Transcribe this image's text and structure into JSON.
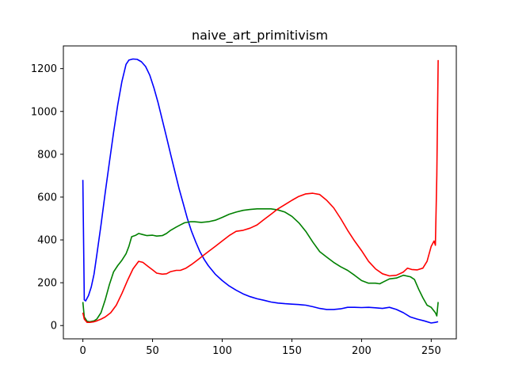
{
  "chart_data": {
    "type": "line",
    "title": "naive_art_primitivism",
    "xlabel": "",
    "ylabel": "",
    "xlim": [
      -14,
      268
    ],
    "ylim": [
      -62,
      1306
    ],
    "xticks": [
      0,
      50,
      100,
      150,
      200,
      250
    ],
    "yticks": [
      0,
      200,
      400,
      600,
      800,
      1000,
      1200
    ],
    "grid": false,
    "legend": "none",
    "series": [
      {
        "color": "#0000ff",
        "points": [
          [
            0,
            680
          ],
          [
            1,
            120
          ],
          [
            2,
            115
          ],
          [
            4,
            140
          ],
          [
            6,
            180
          ],
          [
            8,
            240
          ],
          [
            10,
            330
          ],
          [
            13,
            470
          ],
          [
            16,
            620
          ],
          [
            19,
            760
          ],
          [
            22,
            900
          ],
          [
            25,
            1030
          ],
          [
            28,
            1140
          ],
          [
            31,
            1220
          ],
          [
            33,
            1240
          ],
          [
            36,
            1245
          ],
          [
            39,
            1243
          ],
          [
            42,
            1232
          ],
          [
            45,
            1210
          ],
          [
            48,
            1170
          ],
          [
            51,
            1110
          ],
          [
            54,
            1040
          ],
          [
            57,
            960
          ],
          [
            60,
            880
          ],
          [
            63,
            800
          ],
          [
            66,
            720
          ],
          [
            69,
            640
          ],
          [
            72,
            570
          ],
          [
            75,
            500
          ],
          [
            78,
            440
          ],
          [
            81,
            390
          ],
          [
            84,
            345
          ],
          [
            87,
            310
          ],
          [
            90,
            280
          ],
          [
            95,
            240
          ],
          [
            100,
            210
          ],
          [
            105,
            185
          ],
          [
            110,
            165
          ],
          [
            115,
            148
          ],
          [
            120,
            135
          ],
          [
            125,
            125
          ],
          [
            130,
            118
          ],
          [
            135,
            110
          ],
          [
            140,
            105
          ],
          [
            145,
            102
          ],
          [
            150,
            100
          ],
          [
            155,
            98
          ],
          [
            160,
            95
          ],
          [
            165,
            88
          ],
          [
            170,
            80
          ],
          [
            175,
            75
          ],
          [
            180,
            75
          ],
          [
            185,
            78
          ],
          [
            190,
            85
          ],
          [
            195,
            85
          ],
          [
            200,
            84
          ],
          [
            205,
            85
          ],
          [
            210,
            83
          ],
          [
            215,
            80
          ],
          [
            220,
            85
          ],
          [
            225,
            75
          ],
          [
            230,
            60
          ],
          [
            235,
            40
          ],
          [
            240,
            30
          ],
          [
            245,
            22
          ],
          [
            250,
            12
          ],
          [
            253,
            15
          ],
          [
            255,
            18
          ]
        ]
      },
      {
        "color": "#008000",
        "points": [
          [
            0,
            110
          ],
          [
            1,
            40
          ],
          [
            3,
            20
          ],
          [
            5,
            18
          ],
          [
            8,
            22
          ],
          [
            10,
            30
          ],
          [
            13,
            60
          ],
          [
            16,
            120
          ],
          [
            19,
            190
          ],
          [
            22,
            250
          ],
          [
            25,
            280
          ],
          [
            28,
            305
          ],
          [
            31,
            335
          ],
          [
            33,
            370
          ],
          [
            35,
            415
          ],
          [
            38,
            422
          ],
          [
            40,
            430
          ],
          [
            43,
            425
          ],
          [
            46,
            420
          ],
          [
            50,
            422
          ],
          [
            53,
            418
          ],
          [
            57,
            420
          ],
          [
            60,
            430
          ],
          [
            63,
            445
          ],
          [
            67,
            460
          ],
          [
            70,
            470
          ],
          [
            73,
            480
          ],
          [
            77,
            485
          ],
          [
            80,
            485
          ],
          [
            85,
            482
          ],
          [
            90,
            485
          ],
          [
            95,
            492
          ],
          [
            100,
            505
          ],
          [
            105,
            520
          ],
          [
            110,
            530
          ],
          [
            115,
            538
          ],
          [
            120,
            542
          ],
          [
            125,
            545
          ],
          [
            130,
            545
          ],
          [
            135,
            545
          ],
          [
            140,
            540
          ],
          [
            145,
            530
          ],
          [
            150,
            510
          ],
          [
            155,
            480
          ],
          [
            160,
            440
          ],
          [
            165,
            390
          ],
          [
            170,
            345
          ],
          [
            175,
            320
          ],
          [
            180,
            295
          ],
          [
            185,
            275
          ],
          [
            190,
            258
          ],
          [
            195,
            235
          ],
          [
            200,
            210
          ],
          [
            205,
            198
          ],
          [
            210,
            198
          ],
          [
            213,
            195
          ],
          [
            216,
            205
          ],
          [
            220,
            218
          ],
          [
            225,
            222
          ],
          [
            230,
            235
          ],
          [
            235,
            228
          ],
          [
            238,
            215
          ],
          [
            241,
            170
          ],
          [
            244,
            130
          ],
          [
            247,
            95
          ],
          [
            250,
            85
          ],
          [
            253,
            60
          ],
          [
            254,
            45
          ],
          [
            255,
            110
          ]
        ]
      },
      {
        "color": "#ff0000",
        "points": [
          [
            0,
            60
          ],
          [
            1,
            30
          ],
          [
            3,
            15
          ],
          [
            5,
            15
          ],
          [
            8,
            18
          ],
          [
            10,
            22
          ],
          [
            13,
            30
          ],
          [
            16,
            40
          ],
          [
            20,
            60
          ],
          [
            24,
            95
          ],
          [
            28,
            150
          ],
          [
            32,
            210
          ],
          [
            36,
            265
          ],
          [
            40,
            300
          ],
          [
            43,
            295
          ],
          [
            47,
            275
          ],
          [
            50,
            260
          ],
          [
            53,
            245
          ],
          [
            57,
            240
          ],
          [
            60,
            242
          ],
          [
            63,
            252
          ],
          [
            67,
            258
          ],
          [
            70,
            258
          ],
          [
            74,
            268
          ],
          [
            78,
            285
          ],
          [
            82,
            305
          ],
          [
            86,
            325
          ],
          [
            90,
            345
          ],
          [
            95,
            370
          ],
          [
            100,
            395
          ],
          [
            105,
            420
          ],
          [
            110,
            440
          ],
          [
            115,
            445
          ],
          [
            120,
            455
          ],
          [
            125,
            470
          ],
          [
            130,
            495
          ],
          [
            135,
            520
          ],
          [
            140,
            545
          ],
          [
            145,
            565
          ],
          [
            150,
            585
          ],
          [
            155,
            603
          ],
          [
            160,
            615
          ],
          [
            165,
            618
          ],
          [
            170,
            612
          ],
          [
            175,
            585
          ],
          [
            180,
            550
          ],
          [
            185,
            500
          ],
          [
            190,
            445
          ],
          [
            195,
            395
          ],
          [
            200,
            350
          ],
          [
            205,
            300
          ],
          [
            210,
            265
          ],
          [
            215,
            242
          ],
          [
            220,
            232
          ],
          [
            225,
            235
          ],
          [
            230,
            250
          ],
          [
            233,
            268
          ],
          [
            236,
            262
          ],
          [
            240,
            260
          ],
          [
            244,
            268
          ],
          [
            247,
            300
          ],
          [
            250,
            370
          ],
          [
            252,
            395
          ],
          [
            253,
            375
          ],
          [
            254,
            700
          ],
          [
            255,
            1240
          ]
        ]
      }
    ]
  }
}
